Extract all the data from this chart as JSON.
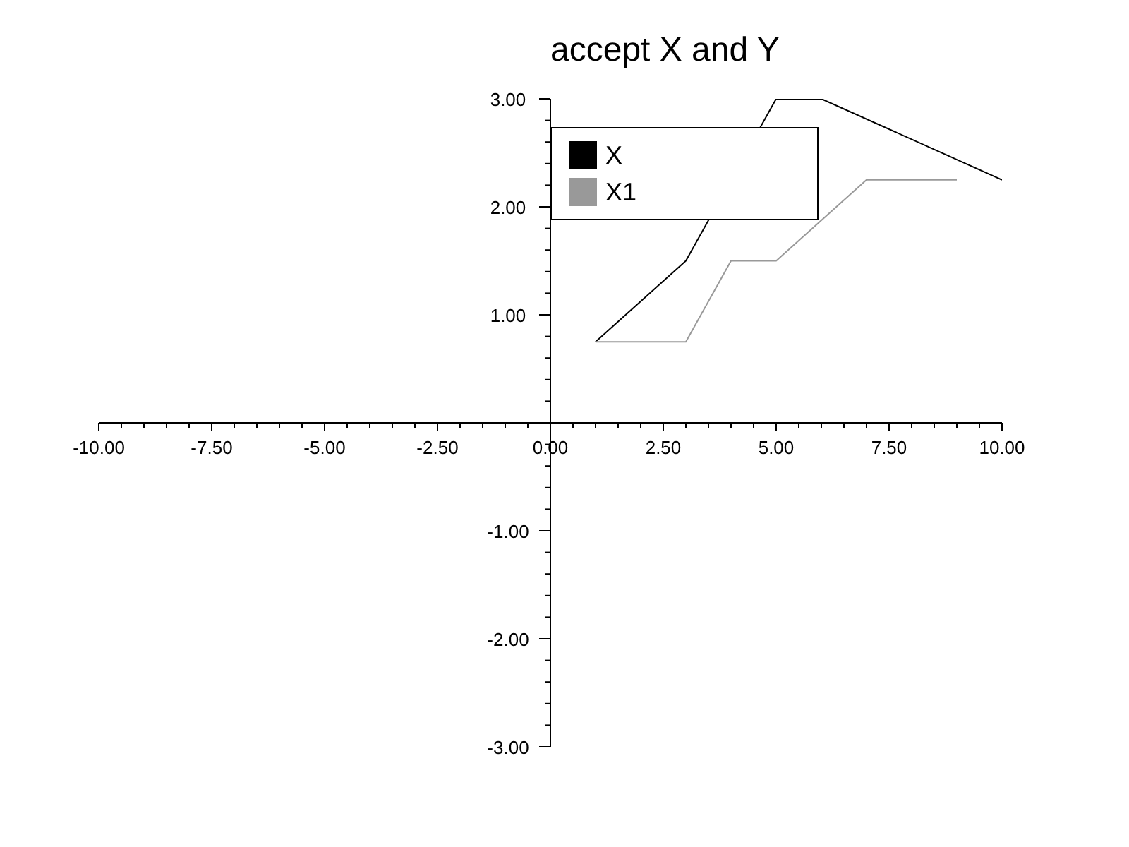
{
  "chart_data": {
    "type": "line",
    "title": "accept X and Y",
    "legend": "top",
    "xlim": [
      -10,
      10
    ],
    "ylim": [
      -3,
      3
    ],
    "xticks": [
      {
        "value": -10,
        "label": "-10.00"
      },
      {
        "value": -9.5,
        "label": null
      },
      {
        "value": -9,
        "label": null
      },
      {
        "value": -8.5,
        "label": null
      },
      {
        "value": -8,
        "label": null
      },
      {
        "value": -7.5,
        "label": "-7.50"
      },
      {
        "value": -7,
        "label": null
      },
      {
        "value": -6.5,
        "label": null
      },
      {
        "value": -6,
        "label": null
      },
      {
        "value": -5.5,
        "label": null
      },
      {
        "value": -5,
        "label": "-5.00"
      },
      {
        "value": -4.5,
        "label": null
      },
      {
        "value": -4,
        "label": null
      },
      {
        "value": -3.5,
        "label": null
      },
      {
        "value": -3,
        "label": null
      },
      {
        "value": -2.5,
        "label": "-2.50"
      },
      {
        "value": -2,
        "label": null
      },
      {
        "value": -1.5,
        "label": null
      },
      {
        "value": -1,
        "label": null
      },
      {
        "value": -0.5,
        "label": null
      },
      {
        "value": 0,
        "label": "0.00"
      },
      {
        "value": 0.5,
        "label": null
      },
      {
        "value": 1,
        "label": null
      },
      {
        "value": 1.5,
        "label": null
      },
      {
        "value": 2,
        "label": null
      },
      {
        "value": 2.5,
        "label": "2.50"
      },
      {
        "value": 3,
        "label": null
      },
      {
        "value": 3.5,
        "label": null
      },
      {
        "value": 4,
        "label": null
      },
      {
        "value": 4.5,
        "label": null
      },
      {
        "value": 5,
        "label": "5.00"
      },
      {
        "value": 5.5,
        "label": null
      },
      {
        "value": 6,
        "label": null
      },
      {
        "value": 6.5,
        "label": null
      },
      {
        "value": 7,
        "label": null
      },
      {
        "value": 7.5,
        "label": "7.50"
      },
      {
        "value": 8,
        "label": null
      },
      {
        "value": 8.5,
        "label": null
      },
      {
        "value": 9,
        "label": null
      },
      {
        "value": 9.5,
        "label": null
      },
      {
        "value": 10,
        "label": "10.00"
      }
    ],
    "yticks": [
      {
        "value": -3,
        "label": "-3.00"
      },
      {
        "value": -2.8,
        "label": null
      },
      {
        "value": -2.6,
        "label": null
      },
      {
        "value": -2.4,
        "label": null
      },
      {
        "value": -2.2,
        "label": null
      },
      {
        "value": -2,
        "label": "-2.00"
      },
      {
        "value": -1.8,
        "label": null
      },
      {
        "value": -1.6,
        "label": null
      },
      {
        "value": -1.4,
        "label": null
      },
      {
        "value": -1.2,
        "label": null
      },
      {
        "value": -1,
        "label": "-1.00"
      },
      {
        "value": -0.8,
        "label": null
      },
      {
        "value": -0.6,
        "label": null
      },
      {
        "value": -0.4,
        "label": null
      },
      {
        "value": -0.2,
        "label": null
      },
      {
        "value": 0.2,
        "label": null
      },
      {
        "value": 0.4,
        "label": null
      },
      {
        "value": 0.6,
        "label": null
      },
      {
        "value": 0.8,
        "label": null
      },
      {
        "value": 1,
        "label": "1.00"
      },
      {
        "value": 1.2,
        "label": null
      },
      {
        "value": 1.4,
        "label": null
      },
      {
        "value": 1.6,
        "label": null
      },
      {
        "value": 1.8,
        "label": null
      },
      {
        "value": 2,
        "label": "2.00"
      },
      {
        "value": 2.2,
        "label": null
      },
      {
        "value": 2.4,
        "label": null
      },
      {
        "value": 2.6,
        "label": null
      },
      {
        "value": 2.8,
        "label": null
      },
      {
        "value": 3,
        "label": "3.00"
      }
    ],
    "series": [
      {
        "name": "X",
        "color": "#000000",
        "x": [
          1,
          3,
          5,
          6,
          10
        ],
        "values": [
          0.75,
          1.5,
          3,
          3,
          2.25
        ]
      },
      {
        "name": "X1",
        "color": "#999999",
        "x": [
          1,
          3,
          4,
          5,
          7,
          9
        ],
        "values": [
          0.75,
          0.75,
          1.5,
          1.5,
          2.25,
          2.25
        ]
      }
    ]
  }
}
